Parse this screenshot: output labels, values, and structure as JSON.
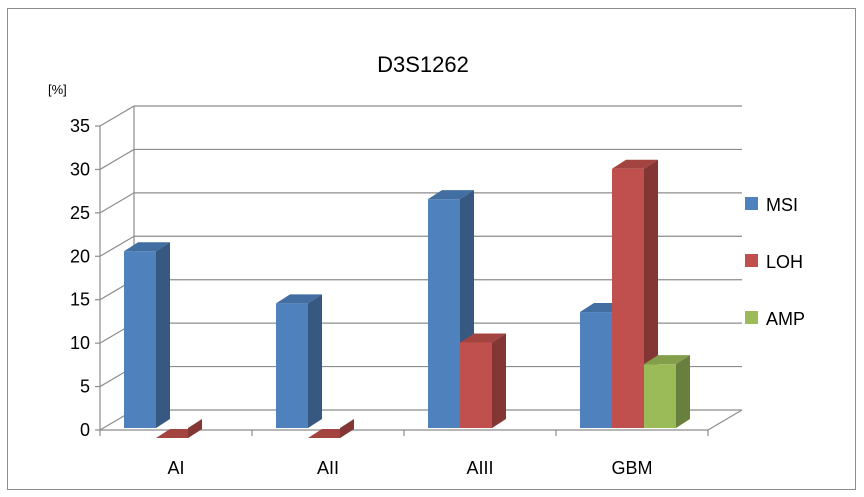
{
  "chart_data": {
    "type": "bar",
    "title": "D3S1262",
    "ylabel": "[%]",
    "xlabel": "",
    "categories": [
      "AI",
      "AII",
      "AIII",
      "GBM"
    ],
    "series": [
      {
        "name": "MSI",
        "values": [
          21.5,
          15.5,
          27.5,
          14.5
        ],
        "color": "#4f81bd"
      },
      {
        "name": "LOH",
        "values": [
          0,
          0,
          11,
          31
        ],
        "color": "#c0504d"
      },
      {
        "name": "AMP",
        "values": [
          0,
          0,
          0,
          8.5
        ],
        "color": "#9bbb59"
      }
    ],
    "ylim": [
      0,
      35
    ],
    "yticks": [
      "0",
      "5",
      "10",
      "15",
      "20",
      "25",
      "30",
      "35"
    ],
    "grid": true,
    "legend_position": "right",
    "style": "3d-clustered-column"
  }
}
